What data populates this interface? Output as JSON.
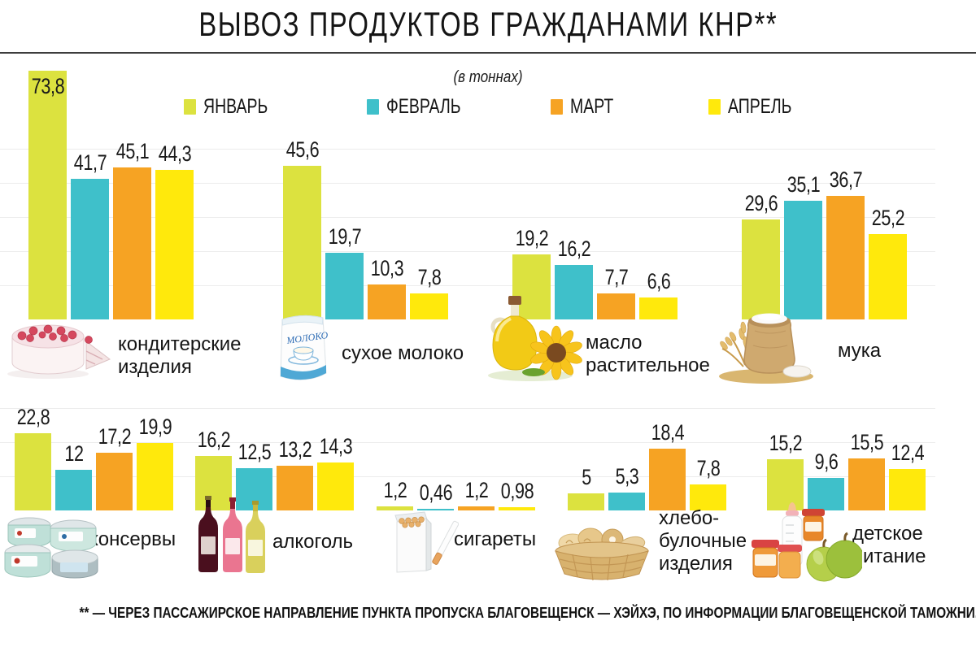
{
  "title": "ВЫВОЗ ПРОДУКТОВ ГРАЖДАНАМИ КНР**",
  "footnote": "** — ЧЕРЕЗ ПАССАЖИРСКОЕ НАПРАВЛЕНИЕ ПУНКТА ПРОПУСКА БЛАГОВЕЩЕНСК — ХЭЙХЭ, ПО ИНФОРМАЦИИ БЛАГОВЕЩЕНСКОЙ ТАМОЖНИ.",
  "chart_data": {
    "type": "bar",
    "title": "ВЫВОЗ ПРОДУКТОВ ГРАЖДАНАМИ КНР**",
    "unit_label": "(в тоннах)",
    "legend_position": "top",
    "grid": true,
    "gridline_step": 10,
    "ylim": [
      0,
      75
    ],
    "series": [
      {
        "name": "ЯНВАРЬ",
        "color": "#dce23f"
      },
      {
        "name": "ФЕВРАЛЬ",
        "color": "#3fc0ca"
      },
      {
        "name": "МАРТ",
        "color": "#f6a323"
      },
      {
        "name": "АПРЕЛЬ",
        "color": "#ffe90c"
      }
    ],
    "groups": [
      {
        "category": "кондитерские\nизделия",
        "icon": "cake-icon",
        "row": 0,
        "values": [
          73.8,
          41.7,
          45.1,
          44.3
        ],
        "value_labels": [
          "73,8",
          "41,7",
          "45,1",
          "44,3"
        ]
      },
      {
        "category": "сухое молоко",
        "icon": "milk-pack-icon",
        "icon_text": "МОЛОКО",
        "row": 0,
        "values": [
          45.6,
          19.7,
          10.3,
          7.8
        ],
        "value_labels": [
          "45,6",
          "19,7",
          "10,3",
          "7,8"
        ]
      },
      {
        "category": "масло\nрастительное",
        "icon": "oil-bottle-icon",
        "row": 0,
        "values": [
          19.2,
          16.2,
          7.7,
          6.6
        ],
        "value_labels": [
          "19,2",
          "16,2",
          "7,7",
          "6,6"
        ]
      },
      {
        "category": "мука",
        "icon": "flour-sack-icon",
        "row": 0,
        "values": [
          29.6,
          35.1,
          36.7,
          25.2
        ],
        "value_labels": [
          "29,6",
          "35,1",
          "36,7",
          "25,2"
        ]
      },
      {
        "category": "консервы",
        "icon": "canned-food-icon",
        "row": 1,
        "values": [
          22.8,
          12,
          17.2,
          19.9
        ],
        "value_labels": [
          "22,8",
          "12",
          "17,2",
          "19,9"
        ]
      },
      {
        "category": "алкоголь",
        "icon": "wine-bottles-icon",
        "row": 1,
        "values": [
          16.2,
          12.5,
          13.2,
          14.3
        ],
        "value_labels": [
          "16,2",
          "12,5",
          "13,2",
          "14,3"
        ]
      },
      {
        "category": "сигареты",
        "icon": "cigarette-pack-icon",
        "row": 1,
        "values": [
          1.2,
          0.46,
          1.2,
          0.98
        ],
        "value_labels": [
          "1,2",
          "0,46",
          "1,2",
          "0,98"
        ]
      },
      {
        "category": "хлебо-\nбулочные\nизделия",
        "icon": "bread-basket-icon",
        "row": 1,
        "values": [
          5,
          5.3,
          18.4,
          7.8
        ],
        "value_labels": [
          "5",
          "5,3",
          "18,4",
          "7,8"
        ]
      },
      {
        "category": "детское\nпитание",
        "icon": "baby-food-icon",
        "row": 1,
        "values": [
          15.2,
          9.6,
          15.5,
          12.4
        ],
        "value_labels": [
          "15,2",
          "9,6",
          "15,5",
          "12,4"
        ]
      }
    ]
  }
}
